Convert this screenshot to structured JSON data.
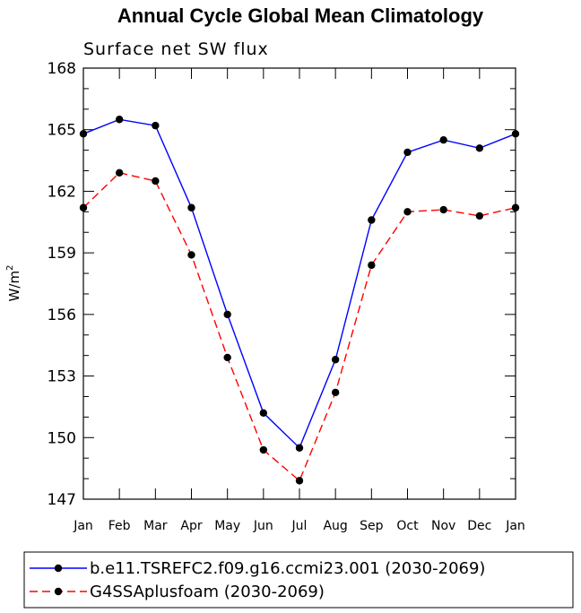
{
  "chart_data": {
    "type": "line",
    "title": "Annual Cycle Global Mean Climatology",
    "subtitle": "Surface net SW flux",
    "ylabel": "W/m",
    "ylabel_sup": "2",
    "xlabel": "",
    "categories": [
      "Jan",
      "Feb",
      "Mar",
      "Apr",
      "May",
      "Jun",
      "Jul",
      "Aug",
      "Sep",
      "Oct",
      "Nov",
      "Dec",
      "Jan"
    ],
    "ylim": [
      147,
      168
    ],
    "yticks": [
      147,
      150,
      153,
      156,
      159,
      162,
      165,
      168
    ],
    "grid": false,
    "legend_position": "bottom",
    "series": [
      {
        "name": "b.e11.TSREFC2.f09.g16.ccmi23.001 (2030-2069)",
        "color": "#0000ff",
        "dash": "solid",
        "marker": "filled-circle",
        "values": [
          164.8,
          165.5,
          165.2,
          161.2,
          156.0,
          151.2,
          149.5,
          153.8,
          160.6,
          163.9,
          164.5,
          164.1,
          164.8
        ]
      },
      {
        "name": "G4SSAplusfoam (2030-2069)",
        "color": "#ff0000",
        "dash": "dashed",
        "marker": "filled-circle",
        "values": [
          161.2,
          162.9,
          162.5,
          158.9,
          153.9,
          149.4,
          147.9,
          152.2,
          158.4,
          161.0,
          161.1,
          160.8,
          161.2
        ]
      }
    ]
  }
}
